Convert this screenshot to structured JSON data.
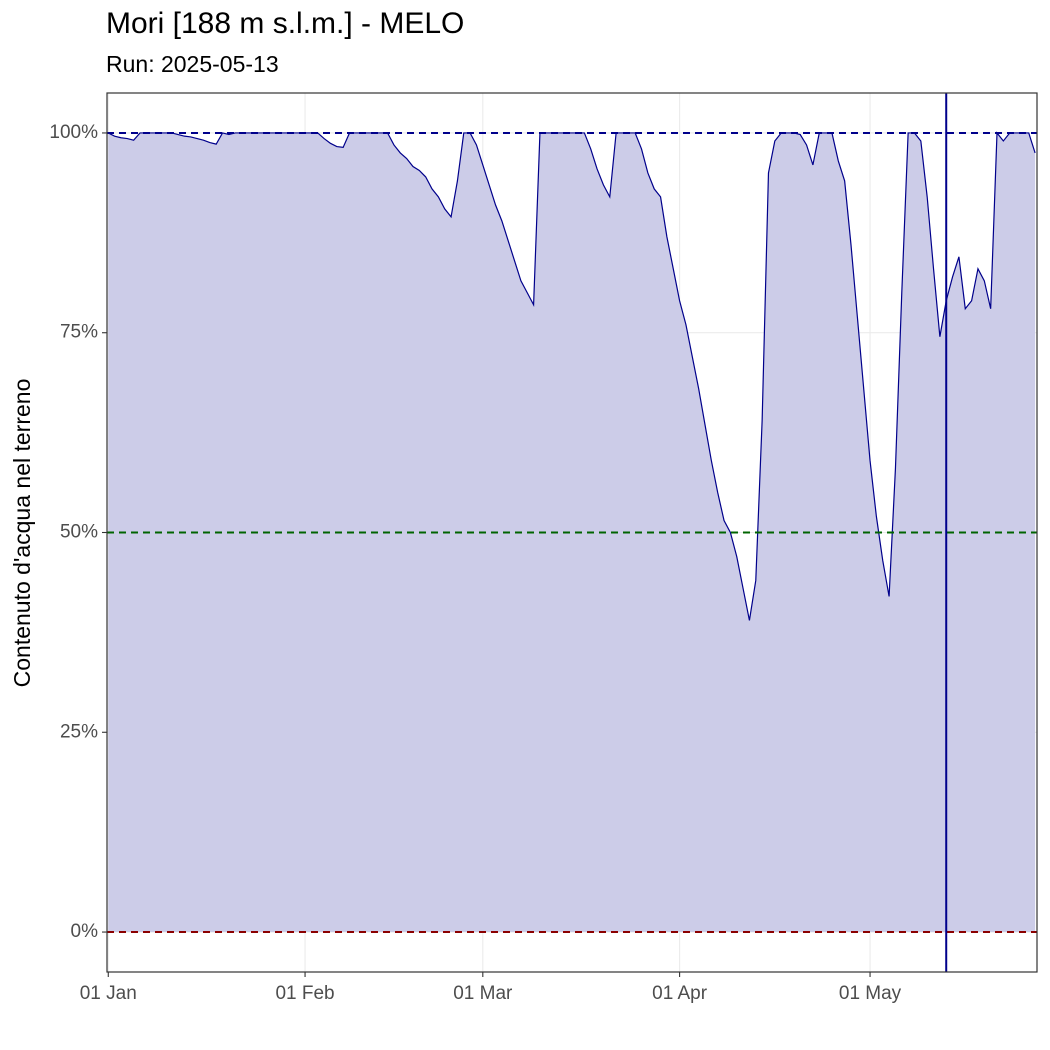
{
  "chart_data": {
    "type": "area",
    "title": "Mori [188 m s.l.m.] - MELO",
    "subtitle": "Run: 2025-05-13",
    "y_label": "Contenuto d'acqua nel terreno",
    "x": [
      "01 Jan",
      "02 Jan",
      "03 Jan",
      "04 Jan",
      "05 Jan",
      "06 Jan",
      "07 Jan",
      "08 Jan",
      "09 Jan",
      "10 Jan",
      "11 Jan",
      "12 Jan",
      "13 Jan",
      "14 Jan",
      "15 Jan",
      "16 Jan",
      "17 Jan",
      "18 Jan",
      "19 Jan",
      "20 Jan",
      "21 Jan",
      "22 Jan",
      "23 Jan",
      "24 Jan",
      "25 Jan",
      "26 Jan",
      "27 Jan",
      "28 Jan",
      "29 Jan",
      "30 Jan",
      "31 Jan",
      "01 Feb",
      "02 Feb",
      "03 Feb",
      "04 Feb",
      "05 Feb",
      "06 Feb",
      "07 Feb",
      "08 Feb",
      "09 Feb",
      "10 Feb",
      "11 Feb",
      "12 Feb",
      "13 Feb",
      "14 Feb",
      "15 Feb",
      "16 Feb",
      "17 Feb",
      "18 Feb",
      "19 Feb",
      "20 Feb",
      "21 Feb",
      "22 Feb",
      "23 Feb",
      "24 Feb",
      "25 Feb",
      "26 Feb",
      "27 Feb",
      "28 Feb",
      "01 Mar",
      "02 Mar",
      "03 Mar",
      "04 Mar",
      "05 Mar",
      "06 Mar",
      "07 Mar",
      "08 Mar",
      "09 Mar",
      "10 Mar",
      "11 Mar",
      "12 Mar",
      "13 Mar",
      "14 Mar",
      "15 Mar",
      "16 Mar",
      "17 Mar",
      "18 Mar",
      "19 Mar",
      "20 Mar",
      "21 Mar",
      "22 Mar",
      "23 Mar",
      "24 Mar",
      "25 Mar",
      "26 Mar",
      "27 Mar",
      "28 Mar",
      "29 Mar",
      "30 Mar",
      "31 Mar",
      "01 Apr",
      "02 Apr",
      "03 Apr",
      "04 Apr",
      "05 Apr",
      "06 Apr",
      "07 Apr",
      "08 Apr",
      "09 Apr",
      "10 Apr",
      "11 Apr",
      "12 Apr",
      "13 Apr",
      "14 Apr",
      "15 Apr",
      "16 Apr",
      "17 Apr",
      "18 Apr",
      "19 Apr",
      "20 Apr",
      "21 Apr",
      "22 Apr",
      "23 Apr",
      "24 Apr",
      "25 Apr",
      "26 Apr",
      "27 Apr",
      "28 Apr",
      "29 Apr",
      "30 Apr",
      "01 May",
      "02 May",
      "03 May",
      "04 May",
      "05 May",
      "06 May",
      "07 May",
      "08 May",
      "09 May",
      "10 May",
      "11 May",
      "12 May",
      "13 May",
      "14 May",
      "15 May",
      "16 May",
      "17 May",
      "18 May",
      "19 May",
      "20 May",
      "21 May",
      "22 May",
      "23 May",
      "24 May",
      "25 May",
      "26 May",
      "27 May"
    ],
    "values": [
      100,
      99.6,
      99.4,
      99.3,
      99.1,
      100,
      100,
      100,
      100,
      100,
      100,
      99.8,
      99.6,
      99.5,
      99.3,
      99.1,
      98.8,
      98.6,
      100,
      99.8,
      100,
      100,
      100,
      100,
      100,
      100,
      100,
      100,
      100,
      100,
      100,
      100,
      100,
      100,
      99.3,
      98.7,
      98.3,
      98.2,
      100,
      100,
      100,
      100,
      100,
      100,
      100,
      98.5,
      97.5,
      96.8,
      95.8,
      95.3,
      94.5,
      93,
      92,
      90.5,
      89.5,
      94,
      100,
      100,
      98.5,
      96,
      93.5,
      91,
      89,
      86.5,
      84,
      81.5,
      80,
      78.5,
      100,
      100,
      100,
      100,
      100,
      100,
      100,
      100,
      98,
      95.5,
      93.5,
      92,
      100,
      100,
      100,
      100,
      98,
      95,
      93,
      92,
      87,
      83,
      79,
      76,
      72,
      68,
      63.5,
      59,
      55,
      51.5,
      50,
      47,
      43,
      39,
      44,
      64,
      95,
      99,
      100,
      100,
      100,
      99.8,
      98.5,
      96,
      100,
      100,
      100,
      96.5,
      94,
      86,
      77,
      68,
      59,
      52,
      46.5,
      42,
      58,
      80,
      100,
      100,
      99,
      92,
      83,
      74.5,
      79,
      82,
      84.5,
      78,
      79,
      83,
      81.5,
      78,
      100,
      99,
      100,
      100,
      100,
      100,
      97.5
    ],
    "color": "#00008b",
    "fill": "#ccccE8",
    "xticks": [
      "01 Jan",
      "01 Feb",
      "01 Mar",
      "01 Apr",
      "01 May"
    ],
    "ylim": [
      -5,
      105
    ],
    "yticks": [
      {
        "value": 0,
        "label": "0%"
      },
      {
        "value": 25,
        "label": "25%"
      },
      {
        "value": 50,
        "label": "50%"
      },
      {
        "value": 75,
        "label": "75%"
      },
      {
        "value": 100,
        "label": "100%"
      }
    ],
    "hlines": [
      {
        "value": 100,
        "color": "#00008b"
      },
      {
        "value": 50,
        "color": "#006400"
      },
      {
        "value": 0,
        "color": "#8b0000"
      }
    ],
    "vline": {
      "x": "13 May",
      "color": "#00008b"
    },
    "grid": true
  }
}
